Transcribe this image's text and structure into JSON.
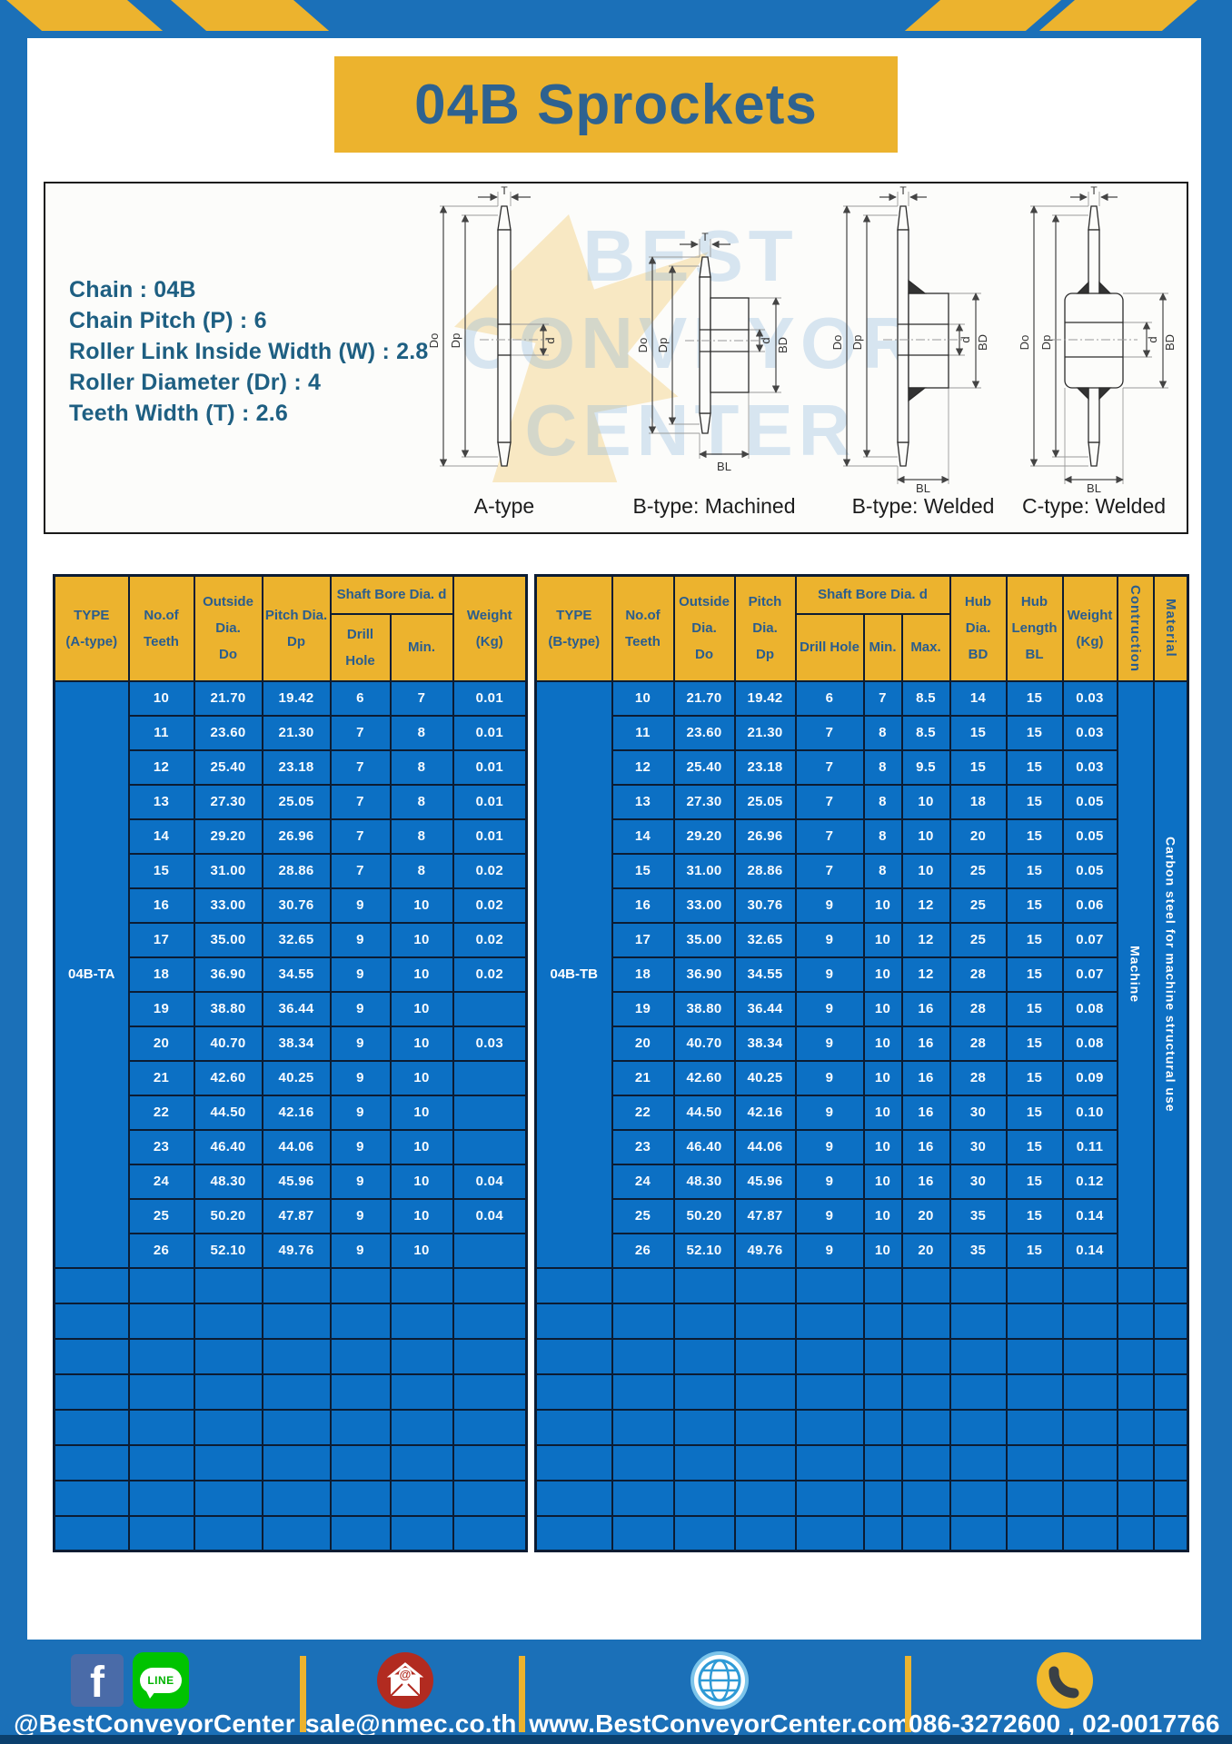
{
  "title": "04B Sprockets",
  "specs": [
    "Chain : 04B",
    "Chain Pitch (P) : 6",
    "Roller Link Inside Width (W) : 2.8",
    "Roller Diameter (Dr) : 4",
    "Teeth Width (T) : 2.6"
  ],
  "watermark": {
    "lines": [
      "BEST",
      "CONVEYOR",
      "CENTER"
    ]
  },
  "drawings": {
    "figures": [
      {
        "label": "A-type"
      },
      {
        "label": "B-type: Machined"
      },
      {
        "label": "B-type: Welded"
      },
      {
        "label": "C-type: Welded"
      }
    ],
    "dims": {
      "t": "T",
      "do": "Do",
      "dp": "Dp",
      "d": "d",
      "bd": "BD",
      "bl": "BL"
    }
  },
  "table_a": {
    "headers": {
      "type": "TYPE\n(A-type)",
      "teeth": "No.of\nTeeth",
      "outside": "Outside\nDia.\nDo",
      "pitch": "Pitch Dia.\nDp",
      "shaft_bore": "Shaft Bore Dia. d",
      "drill": "Drill Hole",
      "min": "Min.",
      "weight": "Weight\n(Kg)"
    },
    "type_label": "04B-TA",
    "columns": 7,
    "empty_rows": 8,
    "rows": [
      [
        "10",
        "21.70",
        "19.42",
        "6",
        "7",
        "0.01"
      ],
      [
        "11",
        "23.60",
        "21.30",
        "7",
        "8",
        "0.01"
      ],
      [
        "12",
        "25.40",
        "23.18",
        "7",
        "8",
        "0.01"
      ],
      [
        "13",
        "27.30",
        "25.05",
        "7",
        "8",
        "0.01"
      ],
      [
        "14",
        "29.20",
        "26.96",
        "7",
        "8",
        "0.01"
      ],
      [
        "15",
        "31.00",
        "28.86",
        "7",
        "8",
        "0.02"
      ],
      [
        "16",
        "33.00",
        "30.76",
        "9",
        "10",
        "0.02"
      ],
      [
        "17",
        "35.00",
        "32.65",
        "9",
        "10",
        "0.02"
      ],
      [
        "18",
        "36.90",
        "34.55",
        "9",
        "10",
        "0.02"
      ],
      [
        "19",
        "38.80",
        "36.44",
        "9",
        "10",
        ""
      ],
      [
        "20",
        "40.70",
        "38.34",
        "9",
        "10",
        "0.03"
      ],
      [
        "21",
        "42.60",
        "40.25",
        "9",
        "10",
        ""
      ],
      [
        "22",
        "44.50",
        "42.16",
        "9",
        "10",
        ""
      ],
      [
        "23",
        "46.40",
        "44.06",
        "9",
        "10",
        ""
      ],
      [
        "24",
        "48.30",
        "45.96",
        "9",
        "10",
        "0.04"
      ],
      [
        "25",
        "50.20",
        "47.87",
        "9",
        "10",
        "0.04"
      ],
      [
        "26",
        "52.10",
        "49.76",
        "9",
        "10",
        ""
      ]
    ]
  },
  "table_b": {
    "headers": {
      "type": "TYPE\n(B-type)",
      "teeth": "No.of\nTeeth",
      "outside": "Outside\nDia.\nDo",
      "pitch": "Pitch Dia.\nDp",
      "shaft_bore": "Shaft Bore Dia. d",
      "drill": "Drill Hole",
      "min": "Min.",
      "max": "Max.",
      "hub_dia": "Hub Dia.\nBD",
      "hub_len": "Hub\nLength\nBL",
      "weight": "Weight\n(Kg)",
      "construction": "Contruction",
      "material": "Material"
    },
    "type_label": "04B-TB",
    "construction_value": "Machine",
    "material_value": "Carbon steel for machine structural use",
    "columns": 12,
    "empty_rows": 8,
    "rows": [
      [
        "10",
        "21.70",
        "19.42",
        "6",
        "7",
        "8.5",
        "14",
        "15",
        "0.03"
      ],
      [
        "11",
        "23.60",
        "21.30",
        "7",
        "8",
        "8.5",
        "15",
        "15",
        "0.03"
      ],
      [
        "12",
        "25.40",
        "23.18",
        "7",
        "8",
        "9.5",
        "15",
        "15",
        "0.03"
      ],
      [
        "13",
        "27.30",
        "25.05",
        "7",
        "8",
        "10",
        "18",
        "15",
        "0.05"
      ],
      [
        "14",
        "29.20",
        "26.96",
        "7",
        "8",
        "10",
        "20",
        "15",
        "0.05"
      ],
      [
        "15",
        "31.00",
        "28.86",
        "7",
        "8",
        "10",
        "25",
        "15",
        "0.05"
      ],
      [
        "16",
        "33.00",
        "30.76",
        "9",
        "10",
        "12",
        "25",
        "15",
        "0.06"
      ],
      [
        "17",
        "35.00",
        "32.65",
        "9",
        "10",
        "12",
        "25",
        "15",
        "0.07"
      ],
      [
        "18",
        "36.90",
        "34.55",
        "9",
        "10",
        "12",
        "28",
        "15",
        "0.07"
      ],
      [
        "19",
        "38.80",
        "36.44",
        "9",
        "10",
        "16",
        "28",
        "15",
        "0.08"
      ],
      [
        "20",
        "40.70",
        "38.34",
        "9",
        "10",
        "16",
        "28",
        "15",
        "0.08"
      ],
      [
        "21",
        "42.60",
        "40.25",
        "9",
        "10",
        "16",
        "28",
        "15",
        "0.09"
      ],
      [
        "22",
        "44.50",
        "42.16",
        "9",
        "10",
        "16",
        "30",
        "15",
        "0.10"
      ],
      [
        "23",
        "46.40",
        "44.06",
        "9",
        "10",
        "16",
        "30",
        "15",
        "0.11"
      ],
      [
        "24",
        "48.30",
        "45.96",
        "9",
        "10",
        "16",
        "30",
        "15",
        "0.12"
      ],
      [
        "25",
        "50.20",
        "47.87",
        "9",
        "10",
        "20",
        "35",
        "15",
        "0.14"
      ],
      [
        "26",
        "52.10",
        "49.76",
        "9",
        "10",
        "20",
        "35",
        "15",
        "0.14"
      ]
    ]
  },
  "footer": {
    "social_label": "@BestConveyorCenter",
    "email": "sale@nmec.co.th",
    "website": "www.BestConveyorCenter.com",
    "phones": "086-3272600 , 02-0017766",
    "line_badge": "LINE",
    "facebook_glyph": "f"
  },
  "colors": {
    "page_blue": "#1B70B8",
    "cell_blue": "#0C70C4",
    "accent_yellow": "#ECB32E",
    "grid_navy": "#0C1C33",
    "header_text_blue": "#2A5D8E",
    "title_text_blue": "#2E6290",
    "spec_text_blue": "#1E5F82"
  }
}
